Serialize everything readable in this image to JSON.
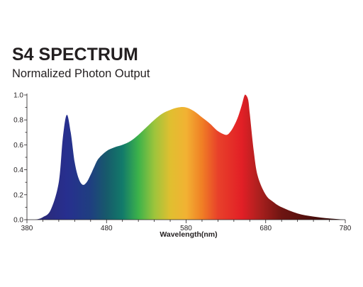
{
  "chart_data": {
    "type": "area",
    "title": "S4 SPECTRUM",
    "subtitle": "Normalized Photon Output",
    "xlabel": "Wavelength(nm)",
    "ylabel": "",
    "xlim": [
      380,
      780
    ],
    "ylim": [
      0,
      1.0
    ],
    "x_ticks": [
      380,
      480,
      580,
      680,
      780
    ],
    "y_ticks": [
      "0.0",
      "0.2",
      "0.4",
      "0.6",
      "0.8",
      "1.0"
    ],
    "grid": false,
    "legend": "none",
    "series": [
      {
        "x": [
          380,
          390,
          400,
          410,
          420,
          425,
          430,
          435,
          440,
          445,
          450,
          455,
          460,
          465,
          470,
          480,
          490,
          500,
          510,
          520,
          530,
          540,
          550,
          560,
          570,
          580,
          590,
          600,
          610,
          620,
          630,
          635,
          640,
          645,
          650,
          653,
          655,
          658,
          660,
          665,
          670,
          680,
          690,
          700,
          720,
          740,
          760,
          780
        ],
        "values": [
          0.0,
          0.0,
          0.02,
          0.08,
          0.3,
          0.65,
          0.84,
          0.7,
          0.46,
          0.33,
          0.28,
          0.3,
          0.36,
          0.43,
          0.49,
          0.55,
          0.58,
          0.6,
          0.63,
          0.68,
          0.74,
          0.8,
          0.85,
          0.88,
          0.9,
          0.9,
          0.87,
          0.82,
          0.77,
          0.71,
          0.68,
          0.7,
          0.75,
          0.82,
          0.92,
          0.99,
          1.0,
          0.96,
          0.85,
          0.55,
          0.35,
          0.2,
          0.14,
          0.1,
          0.05,
          0.025,
          0.01,
          0.0
        ]
      }
    ],
    "colors": {
      "stops": [
        {
          "nm": 400,
          "color": "#2b2a79"
        },
        {
          "nm": 430,
          "color": "#272f8f"
        },
        {
          "nm": 460,
          "color": "#1f3f80"
        },
        {
          "nm": 480,
          "color": "#175a6b"
        },
        {
          "nm": 500,
          "color": "#127a6a"
        },
        {
          "nm": 520,
          "color": "#3cb24a"
        },
        {
          "nm": 540,
          "color": "#9cc43c"
        },
        {
          "nm": 560,
          "color": "#e0bf30"
        },
        {
          "nm": 580,
          "color": "#f2b233"
        },
        {
          "nm": 600,
          "color": "#f07f25"
        },
        {
          "nm": 620,
          "color": "#e8412a"
        },
        {
          "nm": 650,
          "color": "#e21f26"
        },
        {
          "nm": 670,
          "color": "#b0201f"
        },
        {
          "nm": 700,
          "color": "#6e1512"
        },
        {
          "nm": 780,
          "color": "#2a0705"
        }
      ]
    }
  }
}
